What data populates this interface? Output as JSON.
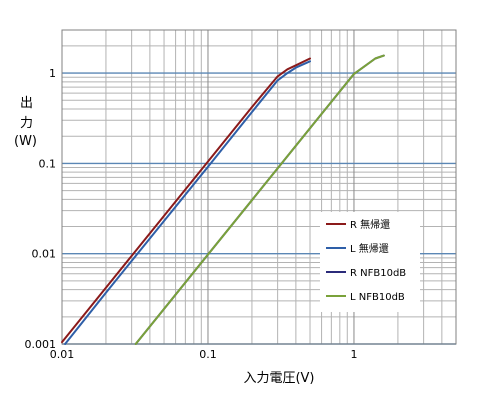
{
  "chart_data": {
    "type": "line",
    "title": "",
    "xlabel": "入力電圧(V)",
    "ylabel_lines": [
      "出",
      "力",
      "(W)"
    ],
    "x_scale": "log",
    "y_scale": "log",
    "xlim": [
      0.01,
      5
    ],
    "ylim": [
      0.001,
      3
    ],
    "x_ticks": [
      0.01,
      0.1,
      1
    ],
    "x_tick_labels": [
      "0.01",
      "0.1",
      "1"
    ],
    "y_ticks": [
      0.001,
      0.01,
      0.1,
      1
    ],
    "y_tick_labels": [
      "0.001",
      "0.01",
      "0.1",
      "1"
    ],
    "grid": true,
    "legend_position": "right-center",
    "series": [
      {
        "name": "R 無帰還",
        "color": "#8b1a1a",
        "points": [
          [
            0.01,
            0.00105
          ],
          [
            0.02,
            0.0042
          ],
          [
            0.05,
            0.0262
          ],
          [
            0.1,
            0.105
          ],
          [
            0.2,
            0.42
          ],
          [
            0.3,
            0.92
          ],
          [
            0.35,
            1.1
          ],
          [
            0.4,
            1.22
          ],
          [
            0.5,
            1.45
          ]
        ]
      },
      {
        "name": "L 無帰還",
        "color": "#2e5fa8",
        "points": [
          [
            0.0105,
            0.001
          ],
          [
            0.02,
            0.0037
          ],
          [
            0.05,
            0.023
          ],
          [
            0.1,
            0.092
          ],
          [
            0.2,
            0.37
          ],
          [
            0.3,
            0.83
          ],
          [
            0.35,
            1.0
          ],
          [
            0.4,
            1.15
          ],
          [
            0.5,
            1.35
          ]
        ]
      },
      {
        "name": "R NFB10dB",
        "color": "#2b2b7a",
        "points": [
          [
            0.032,
            0.001
          ],
          [
            0.1,
            0.0098
          ],
          [
            0.3,
            0.088
          ],
          [
            0.5,
            0.245
          ],
          [
            1.0,
            0.98
          ],
          [
            1.4,
            1.45
          ],
          [
            1.6,
            1.56
          ]
        ]
      },
      {
        "name": "L NFB10dB",
        "color": "#7aa23a",
        "points": [
          [
            0.032,
            0.001
          ],
          [
            0.1,
            0.0098
          ],
          [
            0.3,
            0.088
          ],
          [
            0.5,
            0.245
          ],
          [
            1.0,
            0.98
          ],
          [
            1.4,
            1.45
          ],
          [
            1.6,
            1.56
          ]
        ]
      }
    ]
  }
}
